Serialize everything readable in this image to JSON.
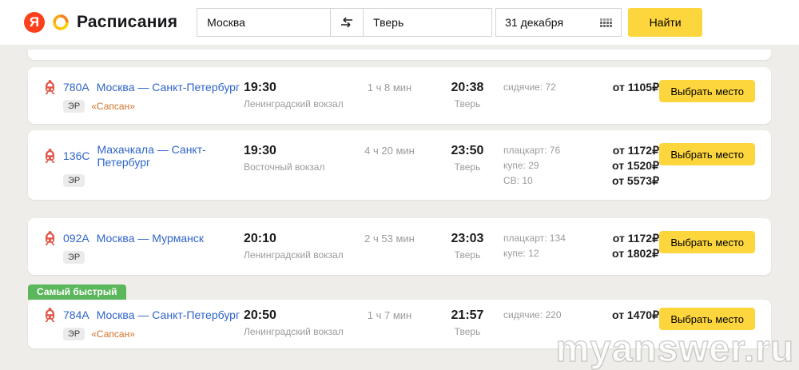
{
  "header": {
    "logo_letter": "Я",
    "brand": "Расписания",
    "from_value": "Москва",
    "to_value": "Тверь",
    "date_value": "31 декабря",
    "find_button": "Найти"
  },
  "labels": {
    "fastest_badge": "Самый быстрый",
    "select_seat_button": "Выбрать место"
  },
  "colors": {
    "accent_yellow": "#fdd53c",
    "link_blue": "#2f64c8",
    "brand_orange": "#d2722a",
    "fastest_green": "#5bb75b",
    "logo_red": "#fc3f1d",
    "page_background": "#efede9"
  },
  "trains": [
    {
      "number": "780А",
      "route": "Москва — Санкт-Петербург",
      "carrier_badge": "ЭР",
      "brand_name": "«Сапсан»",
      "departure_time": "19:30",
      "departure_station": "Ленинградский вокзал",
      "duration": "1 ч 8 мин",
      "arrival_time": "20:38",
      "arrival_station": "Тверь",
      "seat_classes": [
        {
          "name": "сидячие: 72",
          "price": "от 1105₽"
        }
      ],
      "fastest": false
    },
    {
      "number": "136С",
      "route": "Махачкала — Санкт-Петербург",
      "carrier_badge": "ЭР",
      "brand_name": null,
      "departure_time": "19:30",
      "departure_station": "Восточный вокзал",
      "duration": "4 ч 20 мин",
      "arrival_time": "23:50",
      "arrival_station": "Тверь",
      "seat_classes": [
        {
          "name": "плацкарт: 76",
          "price": "от 1172₽"
        },
        {
          "name": "купе: 29",
          "price": "от 1520₽"
        },
        {
          "name": "СВ: 10",
          "price": "от 5573₽"
        }
      ],
      "fastest": false
    },
    {
      "number": "092А",
      "route": "Москва — Мурманск",
      "carrier_badge": "ЭР",
      "brand_name": null,
      "departure_time": "20:10",
      "departure_station": "Ленинградский вокзал",
      "duration": "2 ч 53 мин",
      "arrival_time": "23:03",
      "arrival_station": "Тверь",
      "seat_classes": [
        {
          "name": "плацкарт: 134",
          "price": "от 1172₽"
        },
        {
          "name": "купе: 12",
          "price": "от 1802₽"
        }
      ],
      "fastest": false
    },
    {
      "number": "784А",
      "route": "Москва — Санкт-Петербург",
      "carrier_badge": "ЭР",
      "brand_name": "«Сапсан»",
      "departure_time": "20:50",
      "departure_station": "Ленинградский вокзал",
      "duration": "1 ч 7 мин",
      "arrival_time": "21:57",
      "arrival_station": "Тверь",
      "seat_classes": [
        {
          "name": "сидячие: 220",
          "price": "от 1470₽"
        }
      ],
      "fastest": true
    }
  ],
  "watermark": "myanswer.ru"
}
